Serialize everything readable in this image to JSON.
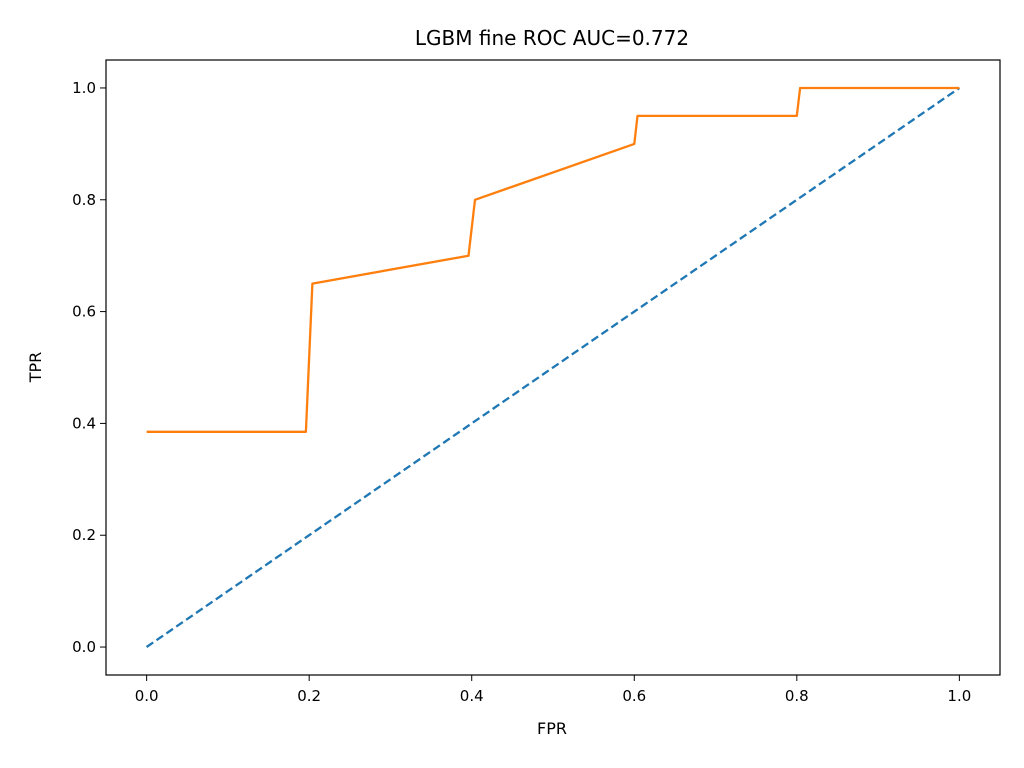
{
  "chart_data": {
    "type": "line",
    "title": "LGBM fine ROC AUC=0.772",
    "xlabel": "FPR",
    "ylabel": "TPR",
    "xlim": [
      -0.05,
      1.05
    ],
    "ylim": [
      -0.05,
      1.05
    ],
    "xticks": [
      0.0,
      0.2,
      0.4,
      0.6,
      0.8,
      1.0
    ],
    "xtick_labels": [
      "0.0",
      "0.2",
      "0.4",
      "0.6",
      "0.8",
      "1.0"
    ],
    "yticks": [
      0.0,
      0.2,
      0.4,
      0.6,
      0.8,
      1.0
    ],
    "ytick_labels": [
      "0.0",
      "0.2",
      "0.4",
      "0.6",
      "0.8",
      "1.0"
    ],
    "grid": false,
    "series": [
      {
        "color": "#1f77b4",
        "style": "dashed",
        "x": [
          0.0,
          1.0
        ],
        "y": [
          0.0,
          1.0
        ]
      },
      {
        "color": "#ff7f0e",
        "style": "solid",
        "x": [
          0.0,
          0.196,
          0.204,
          0.396,
          0.404,
          0.6,
          0.604,
          0.8,
          0.804,
          1.0
        ],
        "y": [
          0.385,
          0.385,
          0.65,
          0.7,
          0.8,
          0.9,
          0.95,
          0.95,
          1.0,
          1.0
        ]
      }
    ]
  }
}
